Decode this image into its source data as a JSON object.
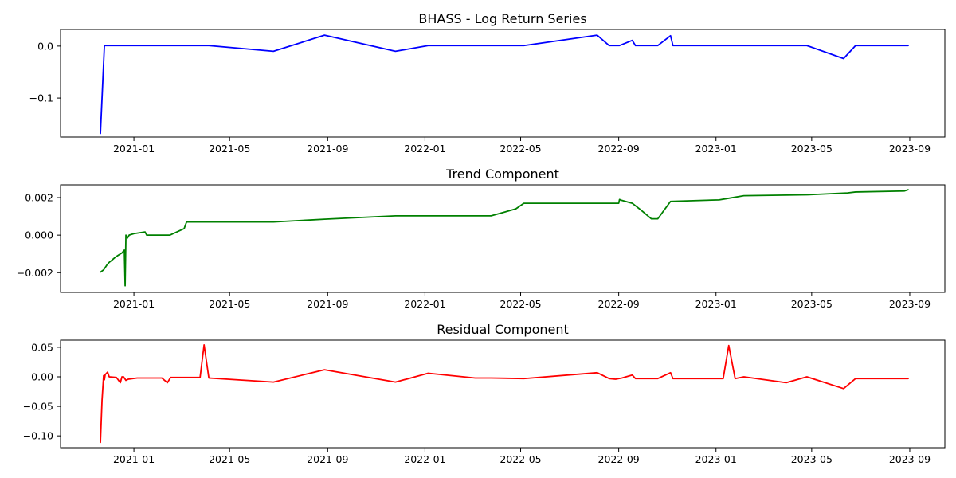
{
  "chart_data": [
    {
      "type": "line",
      "title": "BHASS - Log Return Series",
      "color": "#0000ff",
      "xlabel": "",
      "ylabel": "",
      "xlim": [
        "2020-10-01",
        "2023-10-15"
      ],
      "ylim": [
        -0.175,
        0.032
      ],
      "x_ticks": [
        "2021-01",
        "2021-05",
        "2021-09",
        "2022-01",
        "2022-05",
        "2022-09",
        "2023-01",
        "2023-05",
        "2023-09"
      ],
      "y_ticks": [
        0.0,
        -0.1
      ],
      "y_tick_labels": [
        "0.0",
        "−0.1"
      ],
      "grid": false,
      "series": [
        {
          "x": [
            "2020-11-20",
            "2020-11-25",
            "2021-04-05",
            "2021-06-25",
            "2021-08-28",
            "2021-11-25",
            "2022-01-05",
            "2022-05-05",
            "2022-08-05",
            "2022-08-20",
            "2022-09-02",
            "2022-09-18",
            "2022-09-22",
            "2022-10-20",
            "2022-11-05",
            "2022-11-08",
            "2023-04-25",
            "2023-06-10",
            "2023-06-25",
            "2023-08-30"
          ],
          "y": [
            -0.168,
            0.001,
            0.001,
            -0.01,
            0.021,
            -0.01,
            0.001,
            0.001,
            0.021,
            0.001,
            0.001,
            0.011,
            0.001,
            0.001,
            0.02,
            0.001,
            0.001,
            -0.024,
            0.001,
            0.001
          ]
        }
      ]
    },
    {
      "type": "line",
      "title": "Trend Component",
      "color": "#008000",
      "xlabel": "",
      "ylabel": "",
      "xlim": [
        "2020-10-01",
        "2023-10-15"
      ],
      "ylim": [
        -0.00305,
        0.00268
      ],
      "x_ticks": [
        "2021-01",
        "2021-05",
        "2021-09",
        "2022-01",
        "2022-05",
        "2022-09",
        "2023-01",
        "2023-05",
        "2023-09"
      ],
      "y_ticks": [
        0.002,
        0.0,
        -0.002
      ],
      "y_tick_labels": [
        "0.002",
        "0.000",
        "−0.002"
      ],
      "grid": false,
      "series": [
        {
          "x": [
            "2020-11-20",
            "2020-11-24",
            "2020-11-28",
            "2020-12-01",
            "2020-12-04",
            "2020-12-08",
            "2020-12-12",
            "2020-12-17",
            "2020-12-20",
            "2020-12-21",
            "2020-12-22",
            "2020-12-24",
            "2020-12-26",
            "2021-01-01",
            "2021-01-15",
            "2021-01-17",
            "2021-02-15",
            "2021-03-05",
            "2021-03-08",
            "2021-06-25",
            "2021-08-28",
            "2021-11-25",
            "2022-03-25",
            "2022-04-25",
            "2022-05-05",
            "2022-09-01",
            "2022-09-02",
            "2022-09-05",
            "2022-09-18",
            "2022-09-30",
            "2022-10-12",
            "2022-10-20",
            "2022-11-05",
            "2023-01-05",
            "2023-01-15",
            "2023-02-05",
            "2023-04-25",
            "2023-06-15",
            "2023-06-25",
            "2023-08-25",
            "2023-08-30"
          ],
          "y": [
            -0.00197,
            -0.00185,
            -0.0016,
            -0.00145,
            -0.00135,
            -0.0012,
            -0.00108,
            -0.00095,
            -0.0008,
            -0.0027,
            0.0,
            -0.00015,
            0.0,
            8e-05,
            0.00017,
            0.0,
            0.0,
            0.00035,
            0.0007,
            0.0007,
            0.00085,
            0.00103,
            0.00103,
            0.0014,
            0.0017,
            0.0017,
            0.0019,
            0.00185,
            0.0017,
            0.0013,
            0.00087,
            0.00087,
            0.0018,
            0.00188,
            0.00195,
            0.0021,
            0.00215,
            0.00225,
            0.0023,
            0.00235,
            0.00242
          ]
        }
      ]
    },
    {
      "type": "line",
      "title": "Residual Component",
      "color": "#ff0000",
      "xlabel": "",
      "ylabel": "",
      "xlim": [
        "2020-10-01",
        "2023-10-15"
      ],
      "ylim": [
        -0.12,
        0.062
      ],
      "x_ticks": [
        "2021-01",
        "2021-05",
        "2021-09",
        "2022-01",
        "2022-05",
        "2022-09",
        "2023-01",
        "2023-05",
        "2023-09"
      ],
      "y_ticks": [
        0.05,
        0.0,
        -0.05,
        -0.1
      ],
      "y_tick_labels": [
        "0.05",
        "0.00",
        "−0.05",
        "−0.10"
      ],
      "grid": false,
      "series": [
        {
          "x": [
            "2020-11-20",
            "2020-11-22",
            "2020-11-24",
            "2020-11-25",
            "2020-11-26",
            "2020-11-27",
            "2020-11-29",
            "2020-12-01",
            "2020-12-10",
            "2020-12-15",
            "2020-12-17",
            "2020-12-19",
            "2020-12-22",
            "2020-12-25",
            "2021-01-05",
            "2021-02-05",
            "2021-02-12",
            "2021-02-16",
            "2021-03-25",
            "2021-03-30",
            "2021-04-05",
            "2021-06-25",
            "2021-08-28",
            "2021-11-25",
            "2022-01-05",
            "2022-03-05",
            "2022-03-25",
            "2022-05-05",
            "2022-08-05",
            "2022-08-20",
            "2022-08-28",
            "2022-09-05",
            "2022-09-18",
            "2022-09-22",
            "2022-10-20",
            "2022-11-05",
            "2022-11-08",
            "2023-01-10",
            "2023-01-17",
            "2023-01-25",
            "2023-02-05",
            "2023-03-30",
            "2023-04-25",
            "2023-06-10",
            "2023-06-25",
            "2023-08-30"
          ],
          "y": [
            -0.111,
            -0.04,
            0.002,
            -0.005,
            0.004,
            0.005,
            0.008,
            0.0,
            -0.001,
            -0.01,
            0.0,
            0.0,
            -0.006,
            -0.004,
            -0.002,
            -0.002,
            -0.01,
            -0.001,
            -0.001,
            0.054,
            -0.002,
            -0.009,
            0.012,
            -0.009,
            0.006,
            -0.002,
            -0.002,
            -0.003,
            0.007,
            -0.003,
            -0.004,
            -0.002,
            0.003,
            -0.003,
            -0.003,
            0.007,
            -0.003,
            -0.003,
            0.053,
            -0.003,
            0.0,
            -0.01,
            0.0,
            -0.02,
            -0.003,
            -0.003
          ]
        }
      ]
    }
  ]
}
